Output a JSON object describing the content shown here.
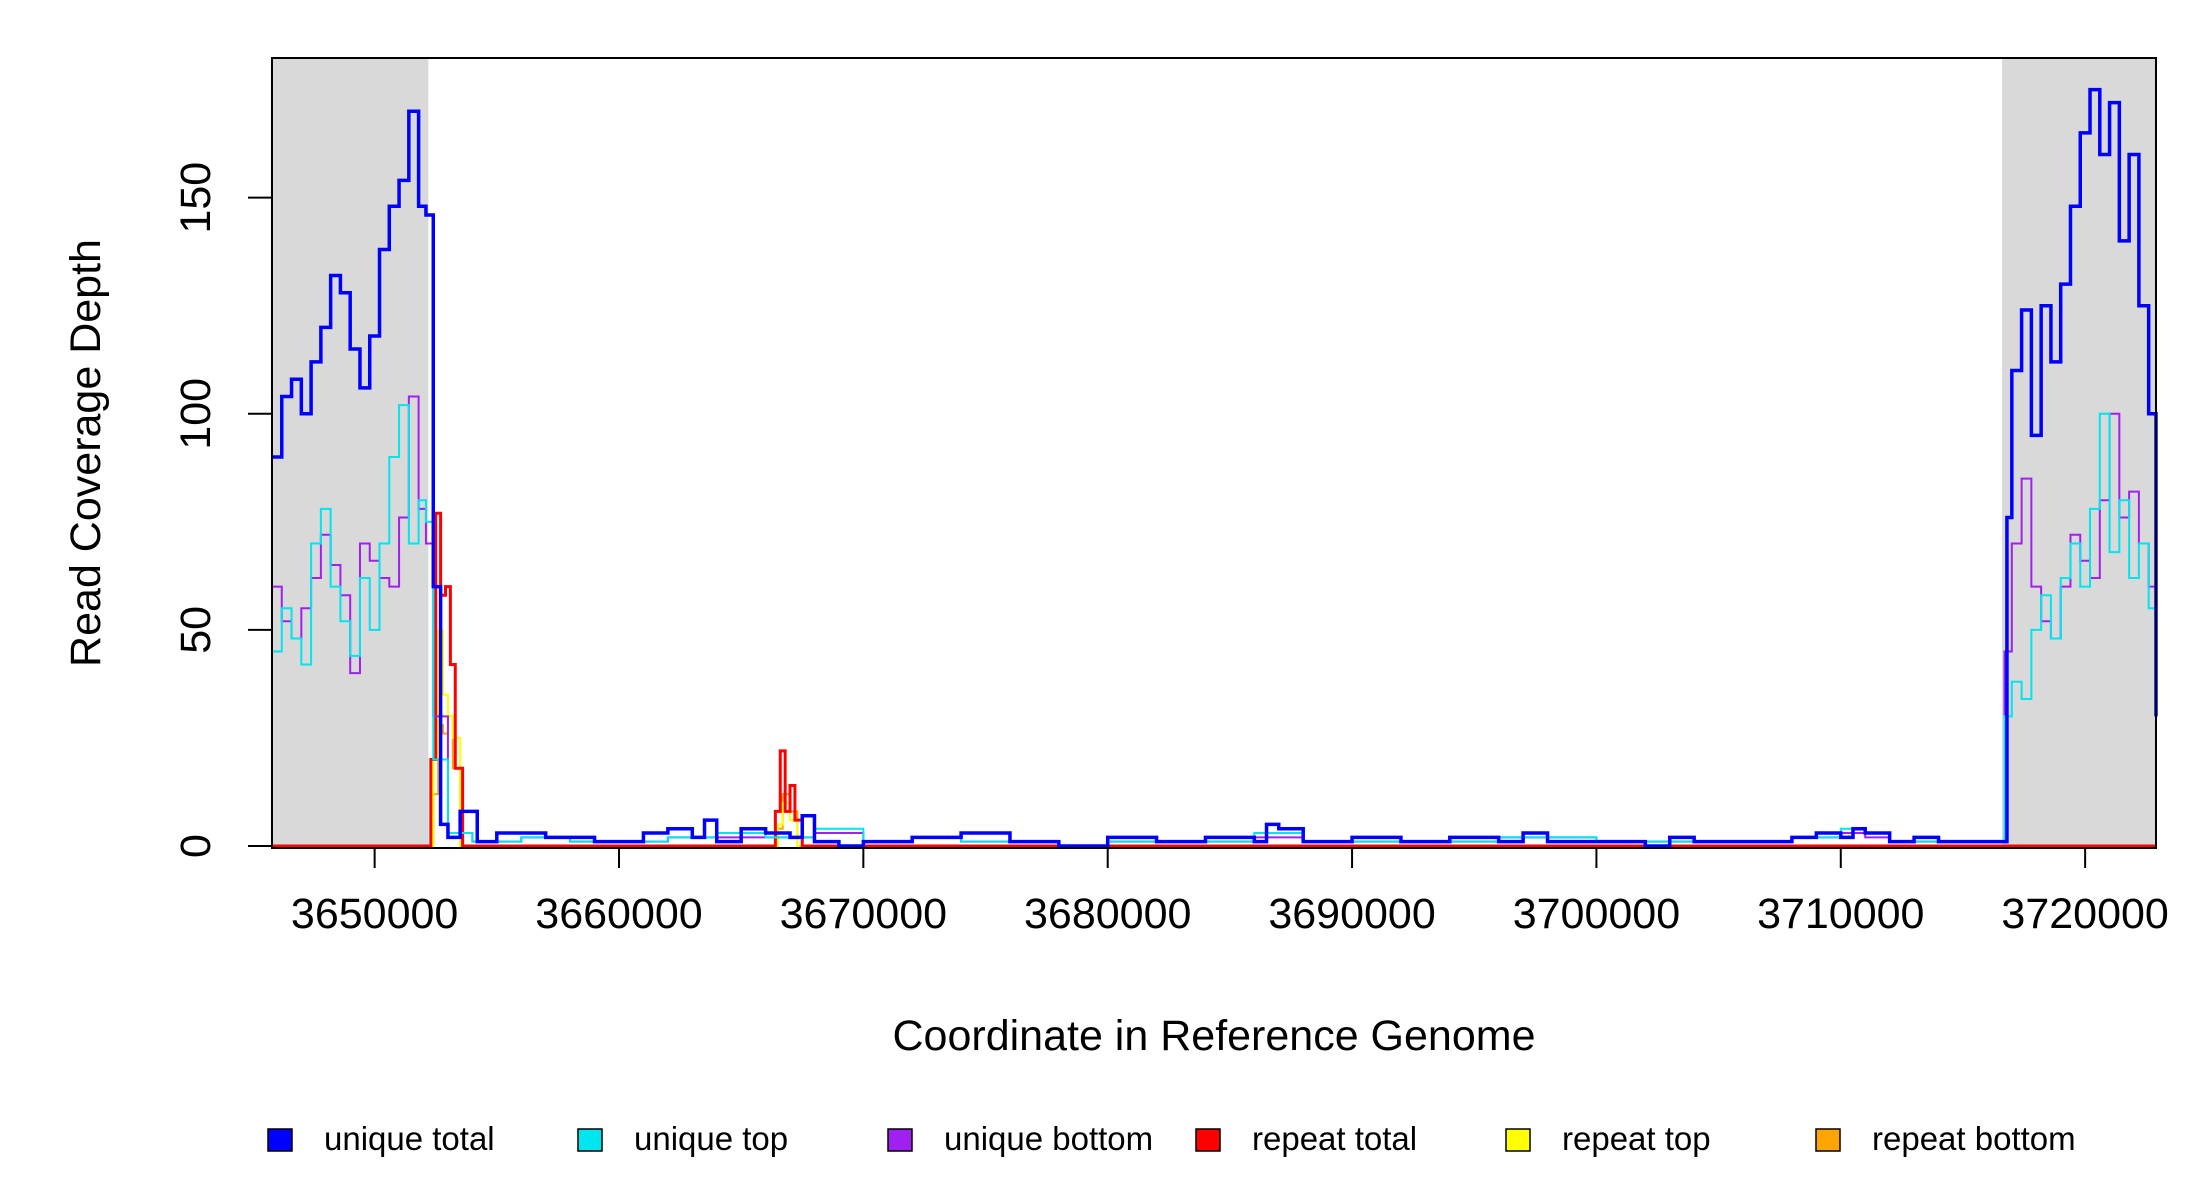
{
  "chart_data": {
    "type": "line",
    "title": "",
    "xlabel": "Coordinate in Reference Genome",
    "ylabel": "Read Coverage Depth",
    "xlim": [
      3645800,
      3722900
    ],
    "ylim": [
      0,
      180
    ],
    "x_ticks": [
      3650000,
      3660000,
      3670000,
      3680000,
      3690000,
      3700000,
      3710000,
      3720000
    ],
    "x_tick_labels": [
      "3650000",
      "3660000",
      "3670000",
      "3680000",
      "3690000",
      "3700000",
      "3710000",
      "3720000"
    ],
    "y_ticks": [
      0,
      50,
      100,
      150
    ],
    "y_tick_labels": [
      "0",
      "50",
      "100",
      "150"
    ],
    "shaded_regions": [
      [
        3645800,
        3652200
      ],
      [
        3716600,
        3722900
      ]
    ],
    "shade_color": "#d9d9d9",
    "legend_placement": "bottom",
    "series": [
      {
        "name": "unique total",
        "color": "#0000ff",
        "x": [
          3645800,
          3646200,
          3646600,
          3647000,
          3647400,
          3647800,
          3648200,
          3648600,
          3649000,
          3649400,
          3649800,
          3650200,
          3650600,
          3651000,
          3651400,
          3651800,
          3652100,
          3652400,
          3652700,
          3653000,
          3653500,
          3654200,
          3655000,
          3656000,
          3657000,
          3658000,
          3659000,
          3660000,
          3661000,
          3662000,
          3663000,
          3663500,
          3664000,
          3665000,
          3666000,
          3667000,
          3667500,
          3668000,
          3669000,
          3670000,
          3672000,
          3674000,
          3676000,
          3678000,
          3680000,
          3682000,
          3684000,
          3686000,
          3686500,
          3687000,
          3688000,
          3690000,
          3692000,
          3694000,
          3696000,
          3697000,
          3698000,
          3700000,
          3702000,
          3703000,
          3704000,
          3706000,
          3708000,
          3709000,
          3710000,
          3710500,
          3711000,
          3712000,
          3713000,
          3714000,
          3715000,
          3716000,
          3716500,
          3716800,
          3717000,
          3717400,
          3717800,
          3718200,
          3718600,
          3719000,
          3719400,
          3719800,
          3720200,
          3720600,
          3721000,
          3721400,
          3721800,
          3722200,
          3722600,
          3722900
        ],
        "y": [
          90,
          104,
          108,
          100,
          112,
          120,
          132,
          128,
          115,
          106,
          118,
          138,
          148,
          154,
          170,
          148,
          146,
          60,
          5,
          2,
          8,
          1,
          3,
          3,
          2,
          2,
          1,
          1,
          3,
          4,
          2,
          6,
          1,
          4,
          3,
          2,
          7,
          1,
          0,
          1,
          2,
          3,
          1,
          0,
          2,
          1,
          2,
          1,
          5,
          4,
          1,
          2,
          1,
          2,
          1,
          3,
          1,
          1,
          0,
          2,
          1,
          1,
          2,
          3,
          2,
          4,
          3,
          1,
          2,
          1,
          1,
          1,
          1,
          76,
          110,
          124,
          95,
          125,
          112,
          130,
          148,
          165,
          175,
          160,
          172,
          140,
          160,
          125,
          100,
          30
        ]
      },
      {
        "name": "unique top",
        "color": "#00e5ee",
        "x": [
          3645800,
          3646200,
          3646600,
          3647000,
          3647400,
          3647800,
          3648200,
          3648600,
          3649000,
          3649400,
          3649800,
          3650200,
          3650600,
          3651000,
          3651400,
          3651800,
          3652100,
          3652400,
          3653000,
          3654000,
          3656000,
          3658000,
          3660000,
          3662000,
          3664000,
          3666000,
          3668000,
          3670000,
          3672000,
          3674000,
          3676000,
          3678000,
          3680000,
          3684000,
          3686000,
          3688000,
          3692000,
          3696000,
          3700000,
          3704000,
          3708000,
          3710000,
          3711000,
          3712000,
          3714000,
          3716000,
          3716700,
          3717000,
          3717400,
          3717800,
          3718200,
          3718600,
          3719000,
          3719400,
          3719800,
          3720200,
          3720600,
          3721000,
          3721400,
          3721800,
          3722200,
          3722600,
          3722900
        ],
        "y": [
          45,
          55,
          48,
          42,
          70,
          78,
          60,
          52,
          44,
          62,
          50,
          70,
          90,
          102,
          70,
          80,
          75,
          20,
          3,
          1,
          2,
          1,
          1,
          2,
          3,
          2,
          4,
          1,
          2,
          1,
          1,
          0,
          1,
          1,
          3,
          1,
          1,
          2,
          1,
          1,
          2,
          4,
          3,
          1,
          1,
          1,
          30,
          38,
          34,
          50,
          58,
          48,
          62,
          70,
          60,
          78,
          100,
          68,
          80,
          62,
          70,
          55,
          40
        ]
      },
      {
        "name": "unique bottom",
        "color": "#a020f0",
        "x": [
          3645800,
          3646200,
          3646600,
          3647000,
          3647400,
          3647800,
          3648200,
          3648600,
          3649000,
          3649400,
          3649800,
          3650200,
          3650600,
          3651000,
          3651400,
          3651800,
          3652100,
          3652400,
          3653000,
          3654000,
          3656000,
          3658000,
          3660000,
          3662000,
          3664000,
          3666000,
          3668000,
          3670000,
          3672000,
          3674000,
          3676000,
          3678000,
          3680000,
          3684000,
          3686000,
          3688000,
          3692000,
          3696000,
          3700000,
          3704000,
          3708000,
          3710000,
          3711000,
          3712000,
          3714000,
          3716000,
          3716700,
          3717000,
          3717400,
          3717800,
          3718200,
          3718600,
          3719000,
          3719400,
          3719800,
          3720200,
          3720600,
          3721000,
          3721400,
          3721800,
          3722200,
          3722600,
          3722900
        ],
        "y": [
          60,
          52,
          48,
          55,
          62,
          72,
          65,
          58,
          40,
          70,
          66,
          62,
          60,
          76,
          104,
          78,
          70,
          30,
          3,
          1,
          2,
          1,
          1,
          2,
          2,
          2,
          3,
          1,
          2,
          1,
          1,
          0,
          1,
          1,
          2,
          1,
          1,
          2,
          1,
          1,
          2,
          3,
          2,
          1,
          1,
          1,
          45,
          70,
          85,
          60,
          52,
          48,
          60,
          72,
          66,
          62,
          80,
          100,
          76,
          82,
          70,
          60,
          55
        ]
      },
      {
        "name": "repeat total",
        "color": "#ff0000",
        "x": [
          3645800,
          3652100,
          3652300,
          3652500,
          3652700,
          3652900,
          3653100,
          3653300,
          3653600,
          3666000,
          3666400,
          3666600,
          3666800,
          3667000,
          3667200,
          3667500,
          3722900
        ],
        "y": [
          0,
          0,
          20,
          77,
          58,
          60,
          42,
          18,
          0,
          0,
          8,
          22,
          8,
          14,
          6,
          0,
          0
        ]
      },
      {
        "name": "repeat top",
        "color": "#ffff00",
        "x": [
          3645800,
          3652200,
          3652400,
          3652600,
          3652800,
          3653000,
          3653200,
          3653500,
          3666000,
          3666500,
          3666700,
          3667000,
          3667300,
          3722900
        ],
        "y": [
          0,
          0,
          20,
          50,
          35,
          30,
          25,
          0,
          0,
          5,
          10,
          6,
          0,
          0
        ]
      },
      {
        "name": "repeat bottom",
        "color": "#ffa500",
        "x": [
          3645800,
          3652200,
          3652400,
          3652600,
          3652800,
          3653000,
          3653200,
          3653500,
          3666000,
          3666500,
          3666700,
          3667000,
          3667300,
          3722900
        ],
        "y": [
          0,
          0,
          12,
          28,
          26,
          30,
          18,
          0,
          0,
          4,
          12,
          8,
          0,
          0
        ]
      }
    ]
  }
}
